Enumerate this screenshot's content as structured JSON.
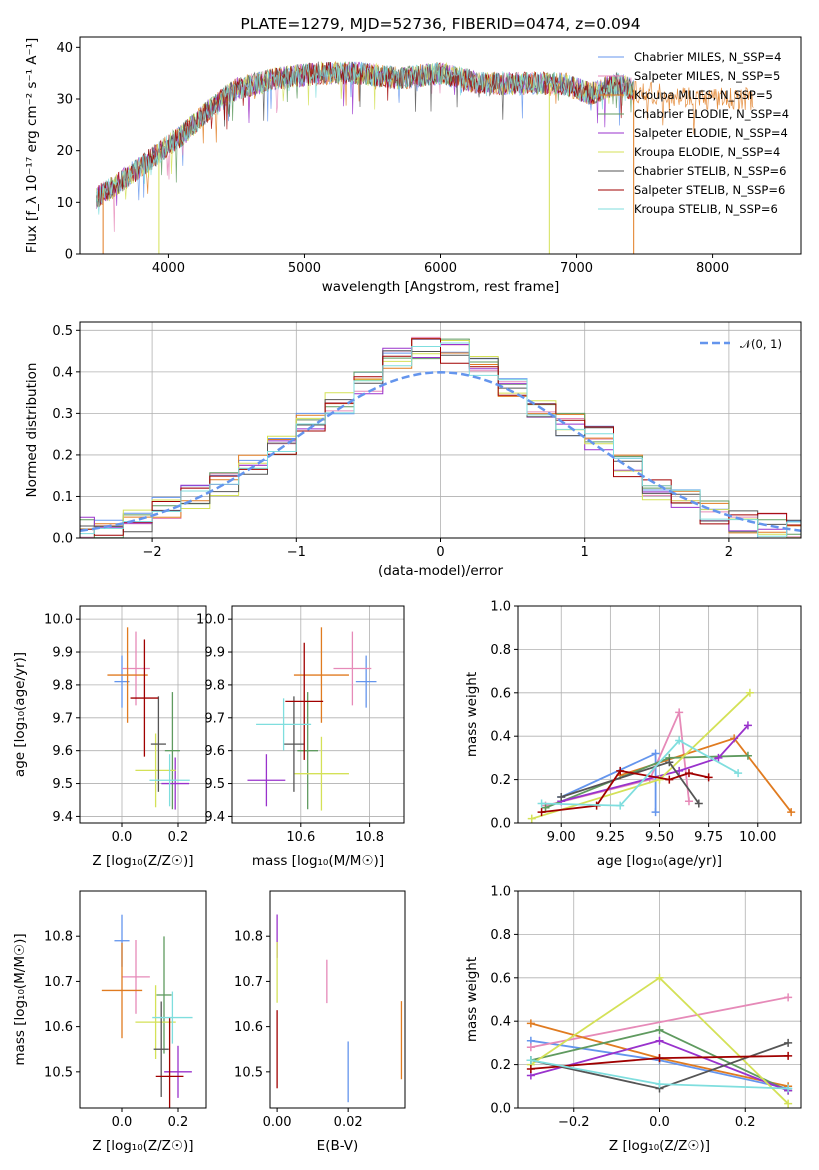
{
  "colors": {
    "c1": "#6495ed",
    "c2": "#e68ab8",
    "c3": "#e07b20",
    "c4": "#5f9a5f",
    "c5": "#9932cc",
    "c6": "#d4e157",
    "c7": "#555555",
    "c8": "#a00000",
    "c9": "#7fdede",
    "normal": "#6495ed"
  },
  "chart_data": [
    {
      "type": "line",
      "title": "PLATE=1279, MJD=52736, FIBERID=0474, z=0.094",
      "xlabel": "wavelength [Angstrom, rest frame]",
      "ylabel": "Flux [f_λ 10⁻¹⁷ erg cm⁻² s⁻¹ A⁻¹]",
      "xlim": [
        3350,
        8650
      ],
      "ylim": [
        0,
        42
      ],
      "xticks": [
        "4000",
        "5000",
        "6000",
        "7000",
        "8000"
      ],
      "yticks": [
        "0",
        "10",
        "20",
        "30",
        "40"
      ],
      "legend": [
        "Chabrier MILES, N_SSP=4",
        "Salpeter MILES, N_SSP=5",
        "Kroupa MILES, N_SSP=5",
        "Chabrier ELODIE, N_SSP=4",
        "Salpeter ELODIE, N_SSP=4",
        "Kroupa ELODIE, N_SSP=4",
        "Chabrier STELIB, N_SSP=6",
        "Salpeter STELIB, N_SSP=6",
        "Kroupa STELIB, N_SSP=6"
      ],
      "legend_position": "upper-right",
      "x": [
        3470,
        3600,
        3800,
        3950,
        4100,
        4300,
        4500,
        4800,
        5100,
        5400,
        5700,
        6000,
        6300,
        6600,
        6900,
        7100,
        7300,
        7500,
        7700,
        7900,
        8100,
        8300
      ],
      "y": [
        11,
        13,
        17,
        20,
        23,
        28,
        32,
        34,
        35,
        35,
        34,
        35,
        33,
        33,
        33,
        31,
        33,
        31,
        31,
        30,
        30,
        30
      ],
      "grid": false
    },
    {
      "type": "line",
      "xlabel": "(data-model)/error",
      "ylabel": "Normed distribution",
      "xlim": [
        -2.5,
        2.5
      ],
      "ylim": [
        0,
        0.52
      ],
      "xticks": [
        "−2",
        "−1",
        "0",
        "1",
        "2"
      ],
      "yticks": [
        "0.0",
        "0.1",
        "0.2",
        "0.3",
        "0.4",
        "0.5"
      ],
      "legend": [
        "𝒩(0, 1)"
      ],
      "legend_position": "upper-right",
      "x": [
        -2.5,
        -2.3,
        -2.1,
        -1.9,
        -1.7,
        -1.5,
        -1.3,
        -1.1,
        -0.9,
        -0.7,
        -0.5,
        -0.3,
        -0.1,
        0.1,
        0.3,
        0.5,
        0.7,
        0.9,
        1.1,
        1.3,
        1.5,
        1.7,
        1.9,
        2.1,
        2.3,
        2.5
      ],
      "y": [
        0.02,
        0.03,
        0.04,
        0.07,
        0.1,
        0.13,
        0.18,
        0.22,
        0.28,
        0.32,
        0.37,
        0.43,
        0.46,
        0.45,
        0.42,
        0.36,
        0.31,
        0.27,
        0.24,
        0.17,
        0.12,
        0.09,
        0.06,
        0.04,
        0.03,
        0.02
      ],
      "grid": true
    },
    {
      "type": "scatter",
      "xlabel": "Z [log₁₀(Z/Z☉)]",
      "ylabel": "age  [log₁₀(age/yr)]",
      "xlim": [
        -0.15,
        0.3
      ],
      "ylim": [
        9.38,
        10.04
      ],
      "xticks": [
        "0.0",
        "0.2"
      ],
      "yticks": [
        "9.4",
        "9.5",
        "9.6",
        "9.7",
        "9.8",
        "9.9",
        "10.0"
      ],
      "grid": true,
      "points": [
        [
          0.0,
          9.81
        ],
        [
          0.05,
          9.85
        ],
        [
          0.02,
          9.83
        ],
        [
          0.18,
          9.6
        ],
        [
          0.19,
          9.5
        ],
        [
          0.12,
          9.54
        ],
        [
          0.13,
          9.62
        ],
        [
          0.08,
          9.76
        ],
        [
          0.17,
          9.51
        ]
      ]
    },
    {
      "type": "scatter",
      "xlabel": "mass [log₁₀(M/M☉)]",
      "ylabel": "",
      "xlim": [
        10.4,
        10.9
      ],
      "ylim": [
        9.38,
        10.04
      ],
      "xticks": [
        "10.6",
        "10.8"
      ],
      "yticks": [
        "9.4",
        "9.5",
        "9.6",
        "9.7",
        "9.8",
        "9.9",
        "10.0"
      ],
      "grid": true,
      "points": [
        [
          10.79,
          9.81
        ],
        [
          10.75,
          9.85
        ],
        [
          10.66,
          9.83
        ],
        [
          10.62,
          9.6
        ],
        [
          10.5,
          9.51
        ],
        [
          10.66,
          9.53
        ],
        [
          10.58,
          9.62
        ],
        [
          10.61,
          9.75
        ],
        [
          10.55,
          9.68
        ]
      ]
    },
    {
      "type": "line",
      "xlabel": "age  [log₁₀(age/yr)]",
      "ylabel": "mass weight",
      "xlim": [
        8.78,
        10.22
      ],
      "ylim": [
        0,
        1
      ],
      "xticks": [
        "9.00",
        "9.25",
        "9.50",
        "9.75",
        "10.00"
      ],
      "yticks": [
        "0.0",
        "0.2",
        "0.4",
        "0.6",
        "0.8",
        "1.0"
      ],
      "grid": true,
      "series": [
        {
          "color": "c1",
          "x": [
            9.0,
            9.48,
            9.48
          ],
          "y": [
            0.12,
            0.32,
            0.05
          ]
        },
        {
          "color": "c2",
          "x": [
            8.92,
            9.45,
            9.6,
            9.65
          ],
          "y": [
            0.08,
            0.2,
            0.51,
            0.1
          ]
        },
        {
          "color": "c3",
          "x": [
            9.3,
            9.88,
            10.17
          ],
          "y": [
            0.22,
            0.39,
            0.05
          ]
        },
        {
          "color": "c4",
          "x": [
            8.92,
            9.55,
            9.95
          ],
          "y": [
            0.07,
            0.3,
            0.31
          ]
        },
        {
          "color": "c5",
          "x": [
            9.0,
            9.6,
            9.8,
            9.95
          ],
          "y": [
            0.1,
            0.24,
            0.3,
            0.45
          ]
        },
        {
          "color": "c6",
          "x": [
            8.85,
            9.5,
            9.96
          ],
          "y": [
            0.02,
            0.2,
            0.6
          ]
        },
        {
          "color": "c7",
          "x": [
            9.0,
            9.55,
            9.7
          ],
          "y": [
            0.12,
            0.28,
            0.09
          ]
        },
        {
          "color": "c8",
          "x": [
            8.9,
            9.18,
            9.3,
            9.55,
            9.65,
            9.75
          ],
          "y": [
            0.05,
            0.08,
            0.24,
            0.2,
            0.23,
            0.21
          ]
        },
        {
          "color": "c9",
          "x": [
            8.9,
            9.3,
            9.6,
            9.9
          ],
          "y": [
            0.09,
            0.08,
            0.38,
            0.23
          ]
        }
      ]
    },
    {
      "type": "scatter",
      "xlabel": "Z [log₁₀(Z/Z☉)]",
      "ylabel": "mass [log₁₀(M/M☉)]",
      "xlim": [
        -0.15,
        0.3
      ],
      "ylim": [
        10.42,
        10.9
      ],
      "xticks": [
        "0.0",
        "0.2"
      ],
      "yticks": [
        "10.5",
        "10.6",
        "10.7",
        "10.8"
      ],
      "grid": false,
      "points": [
        [
          0.0,
          10.79
        ],
        [
          0.05,
          10.71
        ],
        [
          0.0,
          10.68
        ],
        [
          0.15,
          10.67
        ],
        [
          0.2,
          10.5
        ],
        [
          0.12,
          10.61
        ],
        [
          0.14,
          10.55
        ],
        [
          0.17,
          10.49
        ],
        [
          0.18,
          10.62
        ]
      ]
    },
    {
      "type": "scatter",
      "xlabel": "E(B-V)",
      "ylabel": "",
      "xlim": [
        -0.002,
        0.036
      ],
      "ylim": [
        10.42,
        10.9
      ],
      "xticks": [
        "0.00",
        "0.02"
      ],
      "yticks": [
        "10.5",
        "10.6",
        "10.7",
        "10.8"
      ],
      "grid": false,
      "points": [
        [
          0.0,
          10.8
        ],
        [
          0.0,
          10.72
        ],
        [
          0.0,
          10.55
        ],
        [
          0.014,
          10.7
        ],
        [
          0.02,
          10.5
        ],
        [
          0.035,
          10.57
        ]
      ]
    },
    {
      "type": "line",
      "xlabel": "Z [log₁₀(Z/Z☉)]",
      "ylabel": "mass weight",
      "xlim": [
        -0.33,
        0.33
      ],
      "ylim": [
        0,
        1
      ],
      "xticks": [
        "−0.2",
        "0.0",
        "0.2"
      ],
      "yticks": [
        "0.0",
        "0.2",
        "0.4",
        "0.6",
        "0.8",
        "1.0"
      ],
      "grid": true,
      "series": [
        {
          "color": "c1",
          "x": [
            -0.3,
            0.0,
            0.3
          ],
          "y": [
            0.31,
            0.22,
            0.09
          ]
        },
        {
          "color": "c2",
          "x": [
            -0.3,
            0.3
          ],
          "y": [
            0.28,
            0.51
          ]
        },
        {
          "color": "c3",
          "x": [
            -0.3,
            0.0,
            0.3
          ],
          "y": [
            0.39,
            0.23,
            0.1
          ]
        },
        {
          "color": "c4",
          "x": [
            -0.3,
            0.0,
            0.3
          ],
          "y": [
            0.22,
            0.36,
            0.08
          ]
        },
        {
          "color": "c5",
          "x": [
            -0.3,
            0.0,
            0.3
          ],
          "y": [
            0.15,
            0.31,
            0.08
          ]
        },
        {
          "color": "c6",
          "x": [
            -0.3,
            0.0,
            0.3
          ],
          "y": [
            0.2,
            0.6,
            0.02
          ]
        },
        {
          "color": "c7",
          "x": [
            -0.3,
            0.0,
            0.3
          ],
          "y": [
            0.22,
            0.09,
            0.3
          ]
        },
        {
          "color": "c8",
          "x": [
            -0.3,
            0.0,
            0.3
          ],
          "y": [
            0.18,
            0.23,
            0.24
          ]
        },
        {
          "color": "c9",
          "x": [
            -0.3,
            0.0,
            0.3
          ],
          "y": [
            0.22,
            0.11,
            0.09
          ]
        }
      ]
    }
  ]
}
